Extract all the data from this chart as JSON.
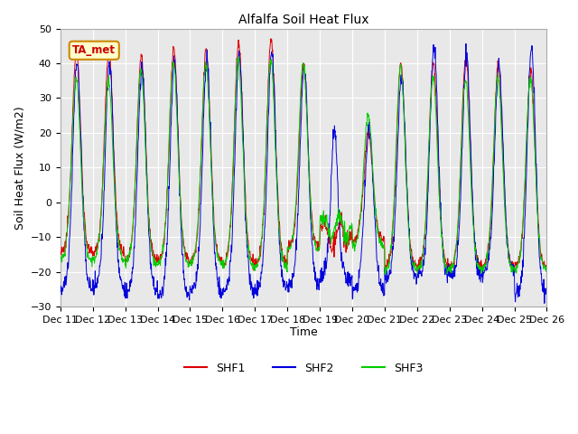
{
  "title": "Alfalfa Soil Heat Flux",
  "ylabel": "Soil Heat Flux (W/m2)",
  "xlabel": "Time",
  "ylim": [
    -30,
    50
  ],
  "fig_bg_color": "#ffffff",
  "plot_bg_color": "#e8e8e8",
  "grid_color": "#ffffff",
  "shf1_color": "#dd0000",
  "shf2_color": "#0000dd",
  "shf3_color": "#00cc00",
  "annotation_text": "TA_met",
  "annotation_bg": "#ffffcc",
  "annotation_border": "#cc8800",
  "legend_labels": [
    "SHF1",
    "SHF2",
    "SHF3"
  ],
  "xtick_labels": [
    "Dec 11",
    "Dec 12",
    "Dec 13",
    "Dec 14",
    "Dec 15",
    "Dec 16",
    "Dec 17",
    "Dec 18",
    "Dec 19",
    "Dec 20",
    "Dec 21",
    "Dec 22",
    "Dec 23",
    "Dec 24",
    "Dec 25",
    "Dec 26"
  ],
  "n_days": 15,
  "points_per_day": 96
}
